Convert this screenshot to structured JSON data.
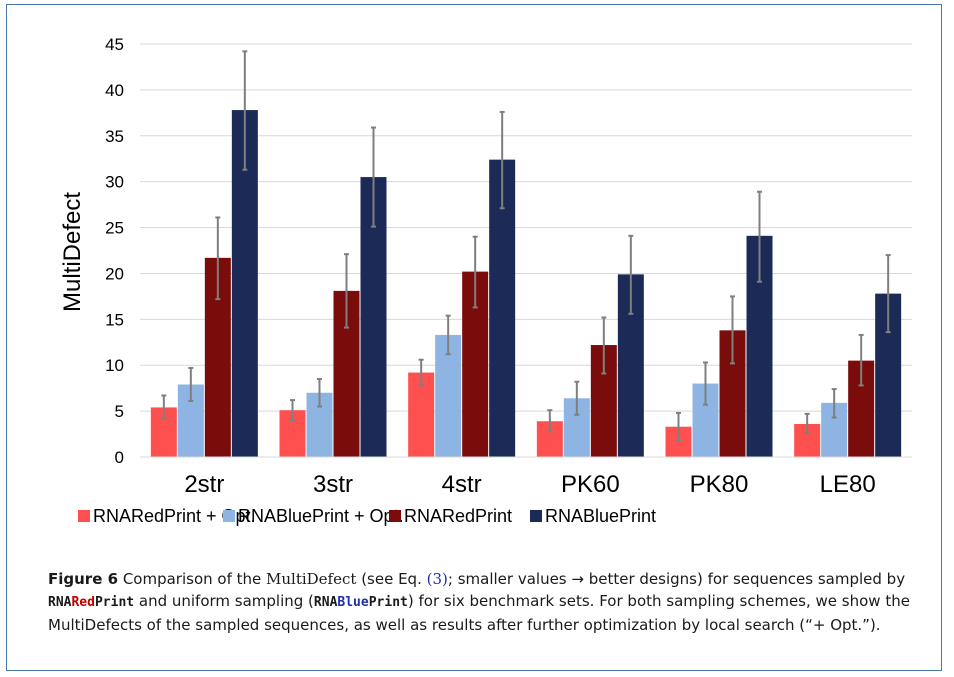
{
  "chart_data": {
    "type": "bar",
    "ylabel": "MultiDefect",
    "ylim": [
      0,
      45
    ],
    "yticks": [
      0,
      5,
      10,
      15,
      20,
      25,
      30,
      35,
      40,
      45
    ],
    "grid": true,
    "legend_position": "bottom",
    "categories": [
      "2str",
      "3str",
      "4str",
      "PK60",
      "PK80",
      "LE80"
    ],
    "series": [
      {
        "name": "RNARedPrint + Opt.",
        "color": "#ff5050",
        "values": [
          5.4,
          5.1,
          9.2,
          3.9,
          3.3,
          3.6
        ],
        "err_low": [
          4.2,
          4.0,
          7.8,
          2.8,
          1.8,
          2.6
        ],
        "err_high": [
          6.7,
          6.2,
          10.6,
          5.1,
          4.8,
          4.7
        ]
      },
      {
        "name": "RNABluePrint + Opt.",
        "color": "#8db4e2",
        "values": [
          7.9,
          7.0,
          13.3,
          6.4,
          8.0,
          5.9
        ],
        "err_low": [
          6.1,
          5.5,
          11.2,
          4.6,
          5.7,
          4.3
        ],
        "err_high": [
          9.7,
          8.5,
          15.4,
          8.2,
          10.3,
          7.4
        ]
      },
      {
        "name": "RNARedPrint",
        "color": "#7b0c0c",
        "values": [
          21.7,
          18.1,
          20.2,
          12.2,
          13.8,
          10.5
        ],
        "err_low": [
          17.2,
          14.1,
          16.3,
          9.1,
          10.2,
          7.8
        ],
        "err_high": [
          26.1,
          22.1,
          24.0,
          15.2,
          17.5,
          13.3
        ]
      },
      {
        "name": "RNABluePrint",
        "color": "#1b2a57",
        "values": [
          37.8,
          30.5,
          32.4,
          19.9,
          24.1,
          17.8
        ],
        "err_low": [
          31.3,
          25.1,
          27.1,
          15.6,
          19.1,
          13.6
        ],
        "err_high": [
          44.2,
          35.9,
          37.6,
          24.1,
          28.9,
          22.0
        ]
      }
    ]
  },
  "caption": {
    "label": "Figure 6",
    "t1": " Comparison of the ",
    "multidefect": "MultiDefect",
    "t2": " (see Eq. ",
    "eq_open": "(",
    "eq_num": "3",
    "eq_close": ")",
    "t3": "; smaller values → better designs) for sequences sampled by ",
    "red_prefix": "RNA",
    "red_word": "Red",
    "red_suffix": "Print",
    "t4": " and uniform sampling (",
    "blue_prefix": "RNA",
    "blue_word": "Blue",
    "blue_suffix": "Print",
    "t5": ") for six benchmark sets. For both sampling schemes, we show the MultiDefects of the sampled sequences, as well as results after further optimization by local search (“+ Opt.”)."
  }
}
